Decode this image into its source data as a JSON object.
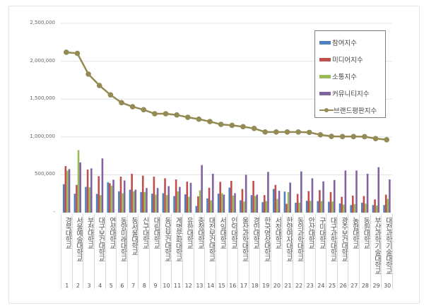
{
  "chart_data": {
    "type": "bar+line",
    "ylim": [
      0,
      2500000
    ],
    "yticks": [
      "-",
      "500,000",
      "1,000,000",
      "1,500,000",
      "2,000,000",
      "2,500,000"
    ],
    "grid": true,
    "legend_placement": "top-right",
    "ranks": [
      "1",
      "2",
      "3",
      "4",
      "5",
      "6",
      "7",
      "8",
      "9",
      "10",
      "11",
      "12",
      "13",
      "14",
      "15",
      "16",
      "17",
      "18",
      "19",
      "20",
      "21",
      "22",
      "23",
      "24",
      "25",
      "26",
      "27",
      "28",
      "29",
      "30"
    ],
    "categories": [
      "경북대학교",
      "서울예술대학교",
      "부천대학교",
      "대구보건대학교",
      "연성대학교",
      "동양미래대학교",
      "동서울대학교",
      "신구대학교",
      "대림대학교",
      "동남보건대학교",
      "계명문화대학교",
      "유한대학교",
      "충청대학교",
      "대전보건대학교",
      "서일대학교",
      "인덕대학교",
      "울산과학대학교",
      "경민대학교",
      "한국영상대학교",
      "서정대학교",
      "한양여자대학교",
      "동의과학대학교",
      "안산대학교",
      "구미대학교",
      "대구과학대학교",
      "광주보건대학교",
      "농협대학교",
      "동원대학교",
      "부산과학기술대학교",
      "대전과학기술대학교"
    ],
    "series": [
      {
        "name": "참여지수",
        "kind": "bar",
        "color": "#4f81bd",
        "values": [
          375000,
          250000,
          340000,
          247000,
          400000,
          281000,
          303000,
          272000,
          250000,
          256000,
          219000,
          241000,
          88000,
          188000,
          250000,
          331000,
          163000,
          231000,
          138000,
          313000,
          278000,
          131000,
          156000,
          153000,
          144000,
          122000,
          100000,
          131000,
          100000,
          100000
        ]
      },
      {
        "name": "미디어지수",
        "kind": "bar",
        "color": "#c0504d",
        "values": [
          615000,
          366000,
          569000,
          481000,
          388000,
          475000,
          513000,
          488000,
          475000,
          453000,
          438000,
          409000,
          216000,
          328000,
          406000,
          419000,
          313000,
          419000,
          231000,
          366000,
          116000,
          247000,
          284000,
          297000,
          272000,
          209000,
          225000,
          219000,
          175000,
          238000
        ]
      },
      {
        "name": "소통지수",
        "kind": "bar",
        "color": "#9bbb59",
        "values": [
          553000,
          825000,
          334000,
          231000,
          356000,
          256000,
          281000,
          272000,
          238000,
          231000,
          281000,
          209000,
          294000,
          163000,
          256000,
          225000,
          147000,
          219000,
          153000,
          181000,
          272000,
          131000,
          156000,
          153000,
          147000,
          106000,
          113000,
          119000,
          94000,
          181000
        ]
      },
      {
        "name": "커뮤니티지수",
        "kind": "bar",
        "color": "#8064a2",
        "values": [
          575000,
          663000,
          584000,
          716000,
          434000,
          425000,
          303000,
          325000,
          325000,
          350000,
          340000,
          394000,
          628000,
          513000,
          238000,
          256000,
          500000,
          238000,
          538000,
          288000,
          397000,
          544000,
          453000,
          413000,
          431000,
          556000,
          556000,
          513000,
          600000,
          438000
        ]
      },
      {
        "name": "브랜드평판지수",
        "kind": "line",
        "color": "#948a54",
        "values": [
          2118000,
          2103000,
          1829000,
          1679000,
          1555000,
          1452000,
          1399000,
          1359000,
          1306000,
          1306000,
          1290000,
          1259000,
          1234000,
          1203000,
          1165000,
          1153000,
          1135000,
          1112000,
          1065000,
          1065000,
          1065000,
          1065000,
          1060000,
          1028000,
          1007000,
          1005000,
          1005000,
          1003000,
          978000,
          963000
        ]
      }
    ]
  }
}
